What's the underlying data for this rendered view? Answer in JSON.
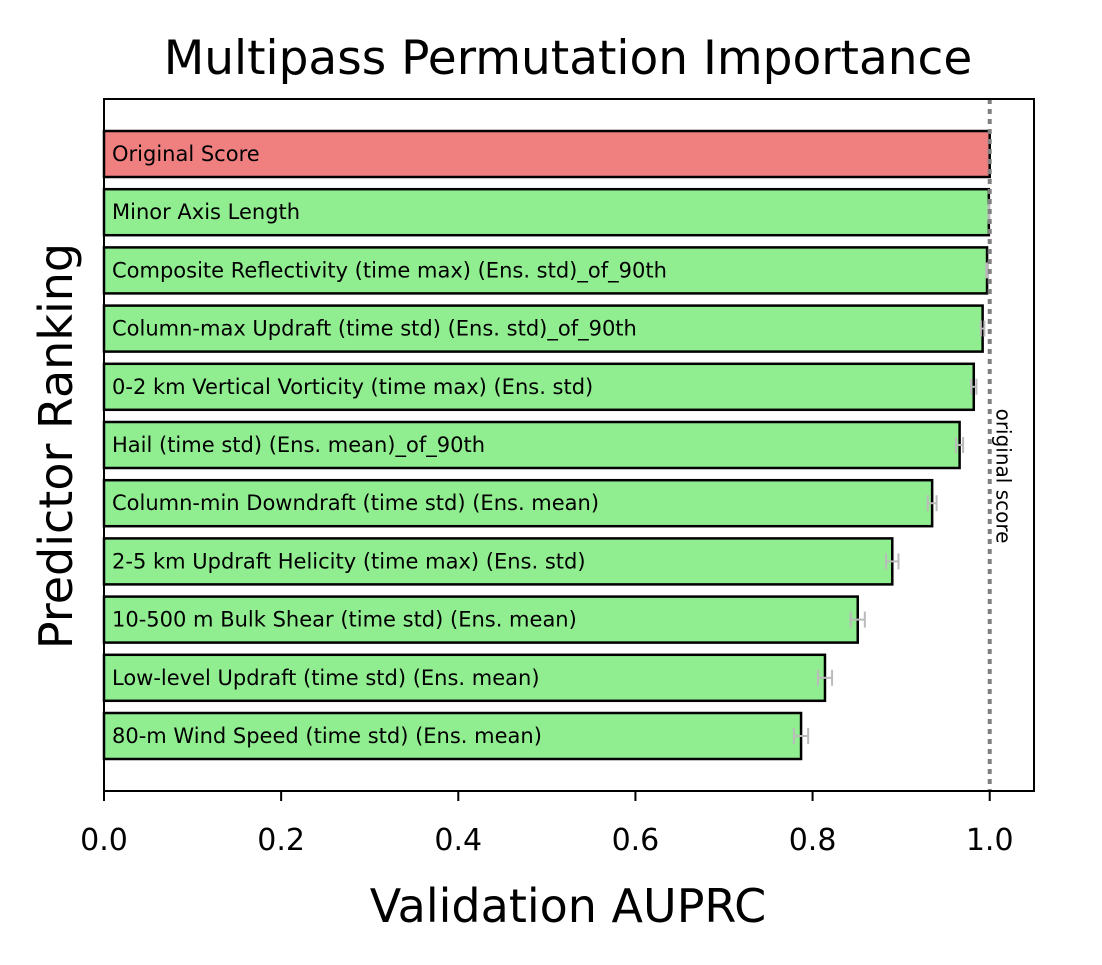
{
  "chart_data": {
    "type": "bar",
    "orientation": "horizontal",
    "title": "Multipass Permutation Importance",
    "xlabel": "Validation AUPRC",
    "ylabel": "Predictor Ranking",
    "xlim": [
      0,
      1.05
    ],
    "xticks": [
      "0.0",
      "0.2",
      "0.4",
      "0.6",
      "0.8",
      "1.0"
    ],
    "grid": false,
    "original_score": 1.0,
    "original_score_label": "original score",
    "bars": [
      {
        "label": "Original Score",
        "value": 1.0,
        "err": 0.0,
        "color": "#f08080"
      },
      {
        "label": "Minor Axis Length",
        "value": 0.999,
        "err": 0.0005,
        "color": "#90ee90"
      },
      {
        "label": "Composite Reflectivity (time max) (Ens. std)_of_90th",
        "value": 0.997,
        "err": 0.001,
        "color": "#90ee90"
      },
      {
        "label": "Column-max Updraft (time std) (Ens. std)_of_90th",
        "value": 0.992,
        "err": 0.002,
        "color": "#90ee90"
      },
      {
        "label": "0-2 km Vertical Vorticity (time max) (Ens. std)",
        "value": 0.982,
        "err": 0.003,
        "color": "#90ee90"
      },
      {
        "label": "Hail (time std) (Ens. mean)_of_90th",
        "value": 0.966,
        "err": 0.004,
        "color": "#90ee90"
      },
      {
        "label": "Column-min Downdraft (time std) (Ens. mean)",
        "value": 0.935,
        "err": 0.005,
        "color": "#90ee90"
      },
      {
        "label": "2-5 km Updraft Helicity (time max) (Ens. std)",
        "value": 0.89,
        "err": 0.007,
        "color": "#90ee90"
      },
      {
        "label": "10-500 m Bulk Shear (time std) (Ens. mean)",
        "value": 0.851,
        "err": 0.008,
        "color": "#90ee90"
      },
      {
        "label": "Low-level Updraft (time std) (Ens. mean)",
        "value": 0.814,
        "err": 0.008,
        "color": "#90ee90"
      },
      {
        "label": "80-m Wind Speed (time std) (Ens. mean)",
        "value": 0.787,
        "err": 0.008,
        "color": "#90ee90"
      }
    ]
  }
}
